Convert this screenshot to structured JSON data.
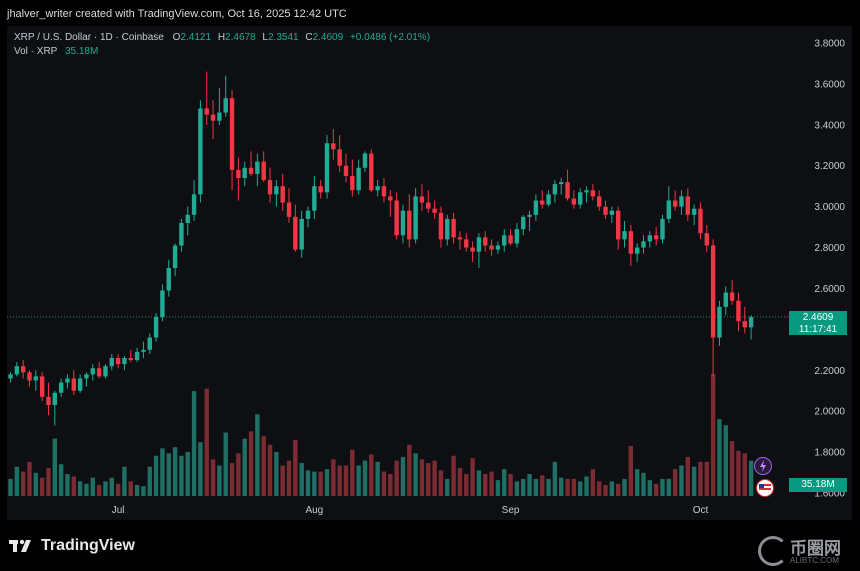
{
  "attribution": "jhalver_writer created with TradingView.com, Oct 16, 2025 12:42 UTC",
  "legend": {
    "symbol": "XRP / U.S. Dollar · 1D · Coinbase",
    "o_label": "O",
    "o_value": "2.4121",
    "h_label": "H",
    "h_value": "2.4678",
    "l_label": "L",
    "l_value": "2.3541",
    "c_label": "C",
    "c_value": "2.4609",
    "change": "+0.0486 (+2.01%)",
    "vol_label": "Vol · XRP",
    "vol_value": "35.18M"
  },
  "price_tag": {
    "price": "2.4609",
    "countdown": "11:17:41"
  },
  "volume_tag": "35.18M",
  "footer": {
    "logo_text": "TradingView",
    "watermark": "币圈网",
    "watermark_sub": "ALIBTC.COM"
  },
  "colors": {
    "up": "#22ab94",
    "down": "#f23645",
    "up_vol": "#1f6f64",
    "down_vol": "#7d2b33",
    "background": "#0e0f13"
  },
  "chart_data": {
    "type": "candlestick",
    "ylim": [
      1.6,
      3.8
    ],
    "y_ticks": [
      "3.8000",
      "3.6000",
      "3.4000",
      "3.2000",
      "3.0000",
      "2.8000",
      "2.6000",
      "2.4000",
      "2.2000",
      "2.0000",
      "1.8000",
      "1.6000"
    ],
    "y_tick_values": [
      3.8,
      3.6,
      3.4,
      3.2,
      3.0,
      2.8,
      2.6,
      2.4,
      2.2,
      2.0,
      1.8,
      1.6
    ],
    "x_ticks": [
      {
        "label": "Jul",
        "index": 17
      },
      {
        "label": "Aug",
        "index": 48
      },
      {
        "label": "Sep",
        "index": 79
      },
      {
        "label": "Oct",
        "index": 109
      }
    ],
    "last_price": 2.4609,
    "ohlc": [
      [
        2.16,
        2.19,
        2.14,
        2.18
      ],
      [
        2.18,
        2.24,
        2.17,
        2.22
      ],
      [
        2.22,
        2.25,
        2.16,
        2.19
      ],
      [
        2.19,
        2.2,
        2.12,
        2.15
      ],
      [
        2.15,
        2.2,
        2.1,
        2.17
      ],
      [
        2.17,
        2.19,
        2.05,
        2.07
      ],
      [
        2.07,
        2.14,
        1.98,
        2.03
      ],
      [
        2.03,
        2.1,
        1.93,
        2.09
      ],
      [
        2.09,
        2.16,
        2.07,
        2.14
      ],
      [
        2.14,
        2.18,
        2.11,
        2.16
      ],
      [
        2.16,
        2.2,
        2.08,
        2.1
      ],
      [
        2.1,
        2.18,
        2.09,
        2.16
      ],
      [
        2.16,
        2.19,
        2.12,
        2.18
      ],
      [
        2.18,
        2.23,
        2.15,
        2.21
      ],
      [
        2.21,
        2.24,
        2.16,
        2.17
      ],
      [
        2.17,
        2.23,
        2.16,
        2.22
      ],
      [
        2.22,
        2.28,
        2.2,
        2.26
      ],
      [
        2.26,
        2.28,
        2.21,
        2.23
      ],
      [
        2.23,
        2.27,
        2.2,
        2.26
      ],
      [
        2.26,
        2.3,
        2.24,
        2.25
      ],
      [
        2.25,
        2.31,
        2.24,
        2.29
      ],
      [
        2.29,
        2.34,
        2.26,
        2.3
      ],
      [
        2.3,
        2.38,
        2.28,
        2.36
      ],
      [
        2.36,
        2.48,
        2.34,
        2.46
      ],
      [
        2.46,
        2.62,
        2.44,
        2.59
      ],
      [
        2.59,
        2.74,
        2.56,
        2.7
      ],
      [
        2.7,
        2.82,
        2.66,
        2.81
      ],
      [
        2.81,
        2.94,
        2.78,
        2.92
      ],
      [
        2.92,
        3.0,
        2.86,
        2.96
      ],
      [
        2.96,
        3.13,
        2.93,
        3.06
      ],
      [
        3.06,
        3.52,
        3.02,
        3.48
      ],
      [
        3.48,
        3.66,
        3.4,
        3.45
      ],
      [
        3.45,
        3.52,
        3.33,
        3.42
      ],
      [
        3.42,
        3.58,
        3.4,
        3.46
      ],
      [
        3.46,
        3.64,
        3.44,
        3.53
      ],
      [
        3.53,
        3.57,
        3.08,
        3.18
      ],
      [
        3.18,
        3.24,
        3.03,
        3.14
      ],
      [
        3.14,
        3.22,
        3.1,
        3.19
      ],
      [
        3.19,
        3.27,
        3.15,
        3.16
      ],
      [
        3.16,
        3.26,
        3.1,
        3.22
      ],
      [
        3.22,
        3.27,
        3.12,
        3.13
      ],
      [
        3.13,
        3.19,
        3.02,
        3.06
      ],
      [
        3.06,
        3.13,
        3.0,
        3.1
      ],
      [
        3.1,
        3.16,
        2.98,
        3.02
      ],
      [
        3.02,
        3.09,
        2.92,
        2.95
      ],
      [
        2.95,
        3.01,
        2.78,
        2.79
      ],
      [
        2.79,
        2.98,
        2.75,
        2.94
      ],
      [
        2.94,
        3.0,
        2.9,
        2.98
      ],
      [
        2.98,
        3.15,
        2.94,
        3.1
      ],
      [
        3.1,
        3.13,
        3.04,
        3.07
      ],
      [
        3.07,
        3.35,
        3.04,
        3.31
      ],
      [
        3.31,
        3.38,
        3.23,
        3.28
      ],
      [
        3.28,
        3.35,
        3.17,
        3.2
      ],
      [
        3.2,
        3.26,
        3.12,
        3.15
      ],
      [
        3.15,
        3.23,
        3.05,
        3.08
      ],
      [
        3.08,
        3.23,
        3.06,
        3.19
      ],
      [
        3.19,
        3.27,
        3.17,
        3.26
      ],
      [
        3.26,
        3.28,
        3.07,
        3.08
      ],
      [
        3.08,
        3.13,
        3.05,
        3.1
      ],
      [
        3.1,
        3.14,
        3.02,
        3.05
      ],
      [
        3.05,
        3.08,
        2.95,
        3.03
      ],
      [
        3.03,
        3.07,
        2.84,
        2.86
      ],
      [
        2.86,
        3.01,
        2.82,
        2.98
      ],
      [
        2.98,
        3.06,
        2.8,
        2.84
      ],
      [
        2.84,
        3.09,
        2.82,
        3.05
      ],
      [
        3.05,
        3.11,
        2.98,
        3.02
      ],
      [
        3.02,
        3.08,
        2.97,
        2.99
      ],
      [
        2.99,
        3.03,
        2.94,
        2.97
      ],
      [
        2.97,
        3.0,
        2.8,
        2.84
      ],
      [
        2.84,
        2.96,
        2.81,
        2.94
      ],
      [
        2.94,
        2.97,
        2.82,
        2.85
      ],
      [
        2.85,
        2.88,
        2.79,
        2.84
      ],
      [
        2.84,
        2.87,
        2.78,
        2.8
      ],
      [
        2.8,
        2.83,
        2.73,
        2.78
      ],
      [
        2.78,
        2.87,
        2.7,
        2.85
      ],
      [
        2.85,
        2.88,
        2.78,
        2.81
      ],
      [
        2.81,
        2.84,
        2.76,
        2.79
      ],
      [
        2.79,
        2.83,
        2.77,
        2.81
      ],
      [
        2.81,
        2.89,
        2.78,
        2.86
      ],
      [
        2.86,
        2.89,
        2.81,
        2.82
      ],
      [
        2.82,
        2.92,
        2.8,
        2.89
      ],
      [
        2.89,
        2.96,
        2.86,
        2.95
      ],
      [
        2.95,
        2.98,
        2.88,
        2.96
      ],
      [
        2.96,
        3.06,
        2.93,
        3.03
      ],
      [
        3.03,
        3.08,
        2.99,
        3.01
      ],
      [
        3.01,
        3.08,
        3.0,
        3.06
      ],
      [
        3.06,
        3.13,
        3.02,
        3.11
      ],
      [
        3.11,
        3.14,
        3.06,
        3.12
      ],
      [
        3.12,
        3.18,
        3.03,
        3.04
      ],
      [
        3.04,
        3.08,
        2.99,
        3.01
      ],
      [
        3.01,
        3.09,
        2.99,
        3.07
      ],
      [
        3.07,
        3.1,
        3.02,
        3.08
      ],
      [
        3.08,
        3.11,
        3.03,
        3.05
      ],
      [
        3.05,
        3.08,
        2.98,
        3.0
      ],
      [
        3.0,
        3.03,
        2.94,
        2.96
      ],
      [
        2.96,
        3.0,
        2.92,
        2.98
      ],
      [
        2.98,
        3.0,
        2.79,
        2.84
      ],
      [
        2.84,
        2.93,
        2.8,
        2.88
      ],
      [
        2.88,
        2.91,
        2.71,
        2.77
      ],
      [
        2.77,
        2.82,
        2.73,
        2.8
      ],
      [
        2.8,
        2.86,
        2.77,
        2.83
      ],
      [
        2.83,
        2.88,
        2.8,
        2.86
      ],
      [
        2.86,
        2.9,
        2.81,
        2.84
      ],
      [
        2.84,
        2.96,
        2.82,
        2.94
      ],
      [
        2.94,
        3.1,
        2.92,
        3.03
      ],
      [
        3.03,
        3.08,
        2.98,
        3.0
      ],
      [
        3.0,
        3.08,
        2.96,
        3.05
      ],
      [
        3.05,
        3.09,
        2.93,
        2.96
      ],
      [
        2.96,
        3.01,
        2.91,
        2.99
      ],
      [
        2.99,
        3.02,
        2.84,
        2.87
      ],
      [
        2.87,
        2.91,
        2.78,
        2.81
      ],
      [
        2.81,
        2.84,
        2.17,
        2.36
      ],
      [
        2.36,
        2.54,
        2.32,
        2.51
      ],
      [
        2.51,
        2.61,
        2.47,
        2.58
      ],
      [
        2.58,
        2.64,
        2.52,
        2.54
      ],
      [
        2.54,
        2.58,
        2.39,
        2.44
      ],
      [
        2.44,
        2.51,
        2.38,
        2.41
      ],
      [
        2.41,
        2.47,
        2.35,
        2.46
      ]
    ],
    "volume": [
      0.14,
      0.24,
      0.2,
      0.28,
      0.19,
      0.15,
      0.23,
      0.47,
      0.26,
      0.18,
      0.16,
      0.12,
      0.1,
      0.15,
      0.09,
      0.12,
      0.15,
      0.1,
      0.24,
      0.12,
      0.09,
      0.08,
      0.24,
      0.33,
      0.39,
      0.35,
      0.4,
      0.33,
      0.36,
      0.86,
      0.44,
      0.88,
      0.3,
      0.25,
      0.52,
      0.27,
      0.35,
      0.47,
      0.53,
      0.67,
      0.49,
      0.42,
      0.36,
      0.25,
      0.29,
      0.46,
      0.27,
      0.21,
      0.2,
      0.2,
      0.22,
      0.3,
      0.25,
      0.25,
      0.38,
      0.25,
      0.29,
      0.34,
      0.28,
      0.2,
      0.18,
      0.29,
      0.32,
      0.42,
      0.35,
      0.3,
      0.27,
      0.29,
      0.21,
      0.14,
      0.33,
      0.23,
      0.18,
      0.31,
      0.21,
      0.18,
      0.2,
      0.13,
      0.22,
      0.18,
      0.12,
      0.14,
      0.18,
      0.14,
      0.17,
      0.14,
      0.28,
      0.15,
      0.14,
      0.14,
      0.12,
      0.16,
      0.22,
      0.12,
      0.09,
      0.12,
      0.1,
      0.14,
      0.41,
      0.22,
      0.19,
      0.13,
      0.1,
      0.14,
      0.14,
      0.22,
      0.25,
      0.32,
      0.24,
      0.28,
      0.28,
      1.0,
      0.63,
      0.58,
      0.45,
      0.37,
      0.35,
      0.29
    ]
  }
}
